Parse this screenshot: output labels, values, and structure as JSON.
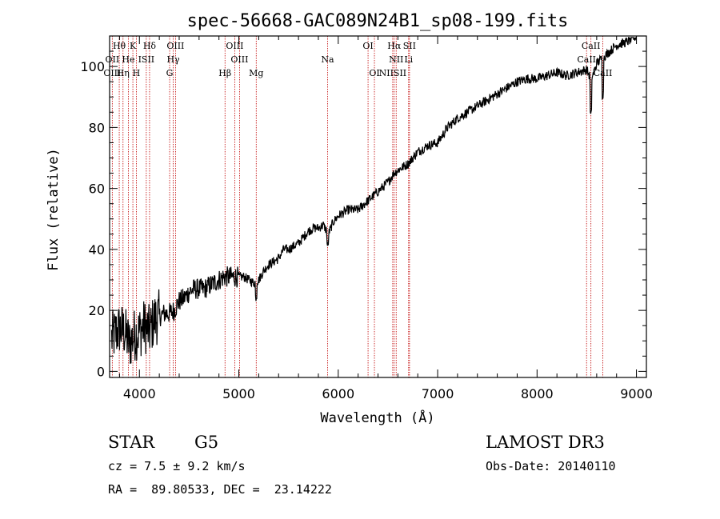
{
  "chart_data": {
    "type": "line",
    "title": "spec-56668-GAC089N24B1_sp08-199.fits",
    "xlabel": "Wavelength (Å)",
    "ylabel": "Flux (relative)",
    "xlim": [
      3700,
      9100
    ],
    "ylim": [
      -2,
      110
    ],
    "xticks": [
      4000,
      5000,
      6000,
      7000,
      8000,
      9000
    ],
    "yticks": [
      0,
      20,
      40,
      60,
      80,
      100
    ],
    "series": [
      {
        "name": "flux",
        "x": [
          3700,
          3750,
          3800,
          3850,
          3900,
          3950,
          4000,
          4050,
          4100,
          4150,
          4200,
          4250,
          4300,
          4350,
          4400,
          4450,
          4500,
          4550,
          4600,
          4650,
          4700,
          4750,
          4800,
          4850,
          4900,
          4950,
          5000,
          5050,
          5100,
          5150,
          5200,
          5250,
          5300,
          5350,
          5400,
          5450,
          5500,
          5550,
          5600,
          5650,
          5700,
          5750,
          5800,
          5850,
          5900,
          5950,
          6000,
          6100,
          6200,
          6300,
          6400,
          6500,
          6560,
          6600,
          6700,
          6800,
          6900,
          7000,
          7100,
          7200,
          7300,
          7400,
          7500,
          7600,
          7700,
          7800,
          7900,
          8000,
          8100,
          8200,
          8300,
          8400,
          8500,
          8540,
          8560,
          8600,
          8660,
          8700,
          8800,
          8900,
          9000
        ],
        "y": [
          10,
          12,
          14,
          13,
          9,
          12,
          13,
          15,
          13,
          17,
          18,
          19,
          19,
          20,
          23,
          24,
          26,
          27,
          27,
          27,
          28,
          29,
          30,
          31,
          31,
          31,
          31,
          31,
          30,
          29,
          30,
          33,
          35,
          36,
          37,
          40,
          40,
          41,
          42,
          44,
          46,
          47,
          47,
          48,
          45,
          49,
          51,
          53,
          53,
          56,
          59,
          62,
          65,
          66,
          68,
          72,
          74,
          75,
          80,
          83,
          85,
          87,
          89,
          91,
          93,
          95,
          96,
          96,
          97,
          98,
          97,
          98,
          99,
          96,
          97,
          101,
          103,
          104,
          107,
          108,
          110
        ]
      }
    ],
    "emission_lines": [
      {
        "label": "Hθ",
        "x": 3797,
        "row": 0
      },
      {
        "label": "K",
        "x": 3934,
        "row": 0
      },
      {
        "label": "Hδ",
        "x": 4102,
        "row": 0
      },
      {
        "label": "OIII",
        "x": 4363,
        "row": 0
      },
      {
        "label": "OIII",
        "x": 4959,
        "row": 0
      },
      {
        "label": "OI",
        "x": 6300,
        "row": 0
      },
      {
        "label": "Hα",
        "x": 6563,
        "row": 0
      },
      {
        "label": "SII",
        "x": 6717,
        "row": 0
      },
      {
        "label": "CaII",
        "x": 8542,
        "row": 0
      },
      {
        "label": "OII",
        "x": 3727,
        "row": 1
      },
      {
        "label": "He",
        "x": 3889,
        "row": 1
      },
      {
        "label": "ISII",
        "x": 4069,
        "row": 1
      },
      {
        "label": "Hγ",
        "x": 4340,
        "row": 1
      },
      {
        "label": "OIII",
        "x": 5007,
        "row": 1
      },
      {
        "label": "Na",
        "x": 5893,
        "row": 1
      },
      {
        "label": "NII",
        "x": 6583,
        "row": 1
      },
      {
        "label": "Li",
        "x": 6708,
        "row": 1
      },
      {
        "label": "CaII",
        "x": 8498,
        "row": 1
      },
      {
        "label": "OIII",
        "x": 3727,
        "row": 2
      },
      {
        "label": "Hη",
        "x": 3835,
        "row": 2
      },
      {
        "label": "H",
        "x": 3969,
        "row": 2
      },
      {
        "label": "G",
        "x": 4304,
        "row": 2
      },
      {
        "label": "Hβ",
        "x": 4861,
        "row": 2
      },
      {
        "label": "Mg",
        "x": 5175,
        "row": 2
      },
      {
        "label": "OI",
        "x": 6364,
        "row": 2
      },
      {
        "label": "NIISII",
        "x": 6548,
        "row": 2
      },
      {
        "label": "CaII",
        "x": 8662,
        "row": 2
      }
    ]
  },
  "info": {
    "class": "STAR",
    "subclass": "G5",
    "survey": "LAMOST DR3",
    "cz": "cz = 7.5 ± 9.2 km/s",
    "obs_date": "Obs-Date: 20140110",
    "coords": "RA =  89.80533, DEC =  23.14222"
  },
  "colors": {
    "spectrum": "#000000",
    "line_marker": "#c00000"
  }
}
